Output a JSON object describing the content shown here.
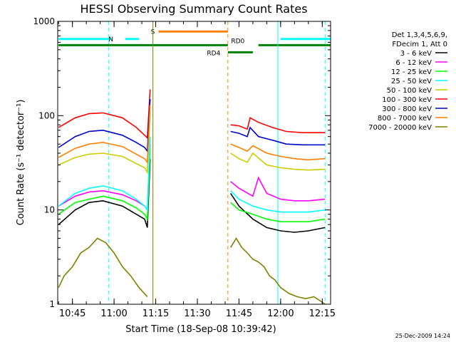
{
  "chart_data": {
    "type": "line",
    "title": "HESSI Observing Summary Count Rates",
    "xlabel": "Start Time (18-Sep-08 10:39:42)",
    "ylabel": "Count Rate (s⁻¹ detector⁻¹)",
    "x_unit": "time of day (HH:MM)",
    "xlim": [
      "10:39:42",
      "12:18:00"
    ],
    "ylim": [
      1,
      1000
    ],
    "y_scale": "log",
    "x_ticks": [
      "10:45",
      "11:00",
      "11:15",
      "11:30",
      "11:45",
      "12:00",
      "12:15"
    ],
    "y_ticks": [
      1,
      10,
      100,
      1000
    ],
    "y_tick_labels": [
      "1",
      "10",
      "100",
      "1000"
    ],
    "legend_header": [
      "Det 1,3,4,5,6,9,",
      "FDecim 1, Att 0"
    ],
    "legend_placement": "right",
    "footer_date": "25-Dec-2009 14:24",
    "series": [
      {
        "name": "3 - 6 keV",
        "color": "#000000",
        "x": [
          "10:40",
          "10:46",
          "10:51",
          "10:56",
          "11:03",
          "11:08",
          "11:11",
          "11:12",
          "11:13",
          "11:42",
          "11:45",
          "11:50",
          "11:55",
          "12:00",
          "12:05",
          "12:10",
          "12:16"
        ],
        "y": [
          7,
          10,
          12,
          12.5,
          11,
          9,
          8,
          6.5,
          35,
          15,
          11,
          8,
          6.5,
          6,
          5.8,
          6,
          6.5
        ]
      },
      {
        "name": "6 - 12 keV",
        "color": "#ff00ff",
        "x": [
          "10:40",
          "10:46",
          "10:51",
          "10:56",
          "11:03",
          "11:08",
          "11:11",
          "11:12",
          "11:13",
          "11:42",
          "11:45",
          "11:50",
          "11:52",
          "11:55",
          "12:00",
          "12:05",
          "12:10",
          "12:16"
        ],
        "y": [
          11,
          14,
          15.5,
          16,
          14.5,
          12.5,
          11,
          10,
          50,
          20,
          17,
          14,
          22,
          15,
          13,
          12.5,
          12.5,
          13
        ]
      },
      {
        "name": "12 - 25 keV",
        "color": "#00ff00",
        "x": [
          "10:40",
          "10:46",
          "10:51",
          "10:56",
          "11:03",
          "11:08",
          "11:11",
          "11:12",
          "11:13",
          "11:42",
          "11:45",
          "11:50",
          "11:55",
          "12:00",
          "12:05",
          "12:10",
          "12:16"
        ],
        "y": [
          9,
          12,
          13,
          14,
          12.5,
          10.5,
          9,
          8,
          45,
          12,
          10,
          9,
          8,
          7.5,
          7.5,
          7.5,
          8
        ]
      },
      {
        "name": "25 - 50 keV",
        "color": "#00ffff",
        "x": [
          "10:40",
          "10:46",
          "10:51",
          "10:56",
          "11:03",
          "11:08",
          "11:11",
          "11:12",
          "11:13",
          "11:42",
          "11:45",
          "11:50",
          "11:55",
          "12:00",
          "12:05",
          "12:10",
          "12:16"
        ],
        "y": [
          11,
          15,
          17,
          18,
          16,
          13,
          11,
          10,
          60,
          16,
          13,
          11,
          10,
          9.5,
          9.5,
          9.5,
          10
        ]
      },
      {
        "name": "50 - 100 keV",
        "color": "#cccc00",
        "x": [
          "10:40",
          "10:46",
          "10:51",
          "10:56",
          "11:03",
          "11:08",
          "11:11",
          "11:12",
          "11:13",
          "11:42",
          "11:45",
          "11:48",
          "11:50",
          "11:55",
          "12:00",
          "12:05",
          "12:10",
          "12:16"
        ],
        "y": [
          30,
          36,
          39,
          40,
          37,
          31,
          28,
          25,
          110,
          40,
          35,
          32,
          40,
          30,
          28,
          27,
          26.5,
          27
        ]
      },
      {
        "name": "100 - 300 keV",
        "color": "#ff0000",
        "x": [
          "10:40",
          "10:46",
          "10:51",
          "10:56",
          "11:03",
          "11:08",
          "11:11",
          "11:12",
          "11:13",
          "11:42",
          "11:45",
          "11:48",
          "11:49",
          "11:52",
          "11:57",
          "12:02",
          "12:08",
          "12:16"
        ],
        "y": [
          75,
          95,
          105,
          107,
          95,
          75,
          62,
          58,
          190,
          80,
          78,
          72,
          95,
          85,
          75,
          68,
          66,
          66
        ]
      },
      {
        "name": "300 - 800 keV",
        "color": "#0000cc",
        "x": [
          "10:40",
          "10:46",
          "10:51",
          "10:56",
          "11:03",
          "11:08",
          "11:11",
          "11:12",
          "11:13",
          "11:42",
          "11:45",
          "11:48",
          "11:49",
          "11:52",
          "11:57",
          "12:02",
          "12:08",
          "12:16"
        ],
        "y": [
          46,
          60,
          68,
          70,
          62,
          52,
          46,
          42,
          150,
          68,
          65,
          60,
          75,
          60,
          55,
          50,
          49,
          49
        ]
      },
      {
        "name": "800 - 7000 keV",
        "color": "#ff8000",
        "x": [
          "10:40",
          "10:46",
          "10:51",
          "10:56",
          "11:03",
          "11:08",
          "11:11",
          "11:12",
          "11:13",
          "11:42",
          "11:45",
          "11:48",
          "11:50",
          "11:55",
          "12:00",
          "12:05",
          "12:10",
          "12:16"
        ],
        "y": [
          36,
          45,
          50,
          52,
          47,
          39,
          35,
          32,
          130,
          50,
          46,
          42,
          48,
          40,
          37,
          35,
          34,
          35
        ]
      },
      {
        "name": "7000 - 20000 keV",
        "color": "#808000",
        "x": [
          "10:40",
          "10:42",
          "10:45",
          "10:48",
          "10:51",
          "10:54",
          "10:57",
          "11:00",
          "11:03",
          "11:06",
          "11:09",
          "11:12",
          "11:42",
          "11:44",
          "11:46",
          "11:48",
          "11:50",
          "11:52",
          "11:54",
          "11:56",
          "11:58",
          "12:00",
          "12:03",
          "12:06",
          "12:09",
          "12:12",
          "12:14",
          "12:16"
        ],
        "y": [
          1.5,
          2,
          2.5,
          3.5,
          4,
          5,
          4.5,
          3.5,
          2.5,
          2,
          1.5,
          1.2,
          4,
          5,
          4,
          3.5,
          3,
          2.8,
          2.5,
          2,
          1.8,
          1.5,
          1.3,
          1.2,
          1.15,
          1.2,
          1.1,
          1.0
        ]
      }
    ],
    "state_bars": [
      {
        "label": "N",
        "color": "#00ffff",
        "y": 650,
        "segments": [
          [
            "10:40",
            "10:59"
          ],
          [
            "11:04",
            "11:09"
          ],
          [
            "12:00",
            "12:18"
          ]
        ]
      },
      {
        "label": "S",
        "color": "#ff8000",
        "y": 780,
        "segments": [
          [
            "11:16",
            "11:41"
          ]
        ]
      },
      {
        "label": "RD0",
        "color": "#008000",
        "y": 560,
        "segments": [
          [
            "10:40",
            "11:41"
          ],
          [
            "11:52",
            "12:18"
          ]
        ]
      },
      {
        "label": "RD4",
        "color": "#008000",
        "y": 470,
        "segments": [
          [
            "11:41",
            "11:50"
          ]
        ]
      }
    ],
    "vertical_markers": [
      {
        "x": "10:58",
        "color": "#00ffff",
        "style": "dashed"
      },
      {
        "x": "11:14",
        "color": "#808000",
        "style": "solid"
      },
      {
        "x": "11:41",
        "color": "#ff8000",
        "style": "dashed"
      },
      {
        "x": "11:59",
        "color": "#00ffff",
        "style": "solid"
      },
      {
        "x": "12:16",
        "color": "#00ffff",
        "style": "dashed"
      }
    ]
  }
}
